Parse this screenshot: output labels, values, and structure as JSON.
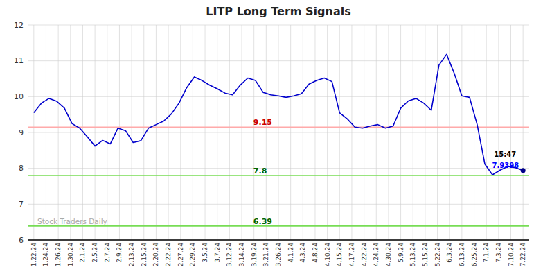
{
  "chart_data": {
    "type": "line",
    "title": "LITP Long Term Signals",
    "background_color": "#ffffff",
    "grid": true,
    "grid_color": "#cccccc",
    "xlim": [
      -0.5,
      40.5
    ],
    "xticks": [
      {
        "value": 0,
        "label": "1.22.24"
      },
      {
        "value": 1,
        "label": "1.24.24"
      },
      {
        "value": 2,
        "label": "1.26.24"
      },
      {
        "value": 3,
        "label": "1.30.24"
      },
      {
        "value": 4,
        "label": "2.1.24"
      },
      {
        "value": 5,
        "label": "2.5.24"
      },
      {
        "value": 6,
        "label": "2.7.24"
      },
      {
        "value": 7,
        "label": "2.9.24"
      },
      {
        "value": 8,
        "label": "2.13.24"
      },
      {
        "value": 9,
        "label": "2.15.24"
      },
      {
        "value": 10,
        "label": "2.20.24"
      },
      {
        "value": 11,
        "label": "2.22.24"
      },
      {
        "value": 12,
        "label": "2.27.24"
      },
      {
        "value": 13,
        "label": "2.29.24"
      },
      {
        "value": 14,
        "label": "3.5.24"
      },
      {
        "value": 15,
        "label": "3.7.24"
      },
      {
        "value": 16,
        "label": "3.12.24"
      },
      {
        "value": 17,
        "label": "3.14.24"
      },
      {
        "value": 18,
        "label": "3.19.24"
      },
      {
        "value": 19,
        "label": "3.21.24"
      },
      {
        "value": 20,
        "label": "3.26.24"
      },
      {
        "value": 21,
        "label": "4.1.24"
      },
      {
        "value": 22,
        "label": "4.3.24"
      },
      {
        "value": 23,
        "label": "4.8.24"
      },
      {
        "value": 24,
        "label": "4.10.24"
      },
      {
        "value": 25,
        "label": "4.15.24"
      },
      {
        "value": 26,
        "label": "4.17.24"
      },
      {
        "value": 27,
        "label": "4.22.24"
      },
      {
        "value": 28,
        "label": "4.24.24"
      },
      {
        "value": 29,
        "label": "4.30.24"
      },
      {
        "value": 30,
        "label": "5.9.24"
      },
      {
        "value": 31,
        "label": "5.13.24"
      },
      {
        "value": 32,
        "label": "5.15.24"
      },
      {
        "value": 33,
        "label": "5.22.24"
      },
      {
        "value": 34,
        "label": "6.3.24"
      },
      {
        "value": 35,
        "label": "6.13.24"
      },
      {
        "value": 36,
        "label": "6.25.24"
      },
      {
        "value": 37,
        "label": "7.1.24"
      },
      {
        "value": 38,
        "label": "7.3.24"
      },
      {
        "value": 39,
        "label": "7.10.24"
      },
      {
        "value": 40,
        "label": "7.22.24"
      }
    ],
    "ylim": [
      6,
      12
    ],
    "yticks": [
      6,
      7,
      8,
      9,
      10,
      11,
      12
    ],
    "series": [
      {
        "color": "#0000cc",
        "x": [
          0,
          0.625,
          1.25,
          1.875,
          2.5,
          3.125,
          3.75,
          4.375,
          5,
          5.625,
          6.25,
          6.875,
          7.5,
          8.125,
          8.75,
          9.375,
          10,
          10.625,
          11.25,
          11.875,
          12.5,
          13.125,
          13.75,
          14.375,
          15,
          15.625,
          16.25,
          16.875,
          17.5,
          18.125,
          18.75,
          19.375,
          20,
          20.625,
          21.25,
          21.875,
          22.5,
          23.125,
          23.75,
          24.375,
          25,
          25.625,
          26.25,
          26.875,
          27.5,
          28.125,
          28.75,
          29.375,
          30,
          30.625,
          31.25,
          31.875,
          32.5,
          33.125,
          33.75,
          34.375,
          35,
          35.625,
          36.25,
          36.875,
          37.5,
          38.125,
          38.75,
          39.375,
          40
        ],
        "values": [
          9.55,
          9.82,
          9.95,
          9.87,
          9.68,
          9.25,
          9.12,
          8.88,
          8.62,
          8.78,
          8.68,
          9.12,
          9.05,
          8.72,
          8.77,
          9.12,
          9.22,
          9.32,
          9.52,
          9.82,
          10.25,
          10.55,
          10.45,
          10.32,
          10.22,
          10.1,
          10.05,
          10.32,
          10.52,
          10.45,
          10.12,
          10.05,
          10.02,
          9.98,
          10.02,
          10.08,
          10.35,
          10.45,
          10.52,
          10.42,
          9.55,
          9.38,
          9.15,
          9.12,
          9.18,
          9.22,
          9.12,
          9.18,
          9.68,
          9.88,
          9.95,
          9.82,
          9.62,
          10.88,
          11.18,
          10.65,
          10.02,
          9.98,
          9.22,
          8.12,
          7.82,
          7.95,
          8.05,
          8.02,
          7.9398
        ]
      }
    ],
    "hlines": [
      {
        "value": 9.15,
        "label": "9.15",
        "color": "#ffaaaa",
        "label_color": "#cc0000"
      },
      {
        "value": 7.8,
        "label": "7.8",
        "color": "#77dd55",
        "label_color": "#006600"
      },
      {
        "value": 6.39,
        "label": "6.39",
        "color": "#77dd55",
        "label_color": "#006600"
      }
    ],
    "last_point": {
      "x": 40,
      "value": 7.9398,
      "label": "7.9398",
      "time": "15:47",
      "color": "#000088",
      "label_color": "#0000ff"
    },
    "watermark": "Stock Traders Daily",
    "watermark_color": "#aaaaaa"
  }
}
